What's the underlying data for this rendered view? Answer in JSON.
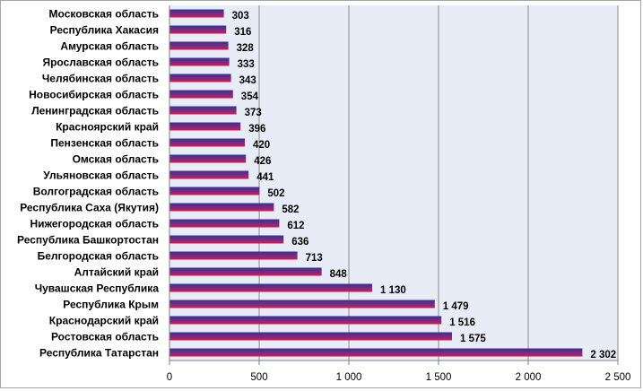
{
  "chart_data": {
    "type": "bar",
    "orientation": "horizontal",
    "title": "",
    "xlabel": "",
    "ylabel": "",
    "xlim": [
      0,
      2500
    ],
    "x_ticks": [
      0,
      500,
      1000,
      1500,
      2000,
      2500
    ],
    "x_tick_labels": [
      "0",
      "500",
      "1 000",
      "1 500",
      "2 000",
      "2 500"
    ],
    "grid": "vertical",
    "legend": "none",
    "colors": {
      "plot_background": "#e8ecf6",
      "gridline": "#8c8c8c",
      "bar_top": "#3a2e9a",
      "bar_bottom": "#c8204c"
    },
    "categories": [
      "Московская область",
      "Республика Хакасия",
      "Амурская область",
      "Ярославская область",
      "Челябинская область",
      "Новосибирская область",
      "Ленинградская область",
      "Красноярский край",
      "Пензенская область",
      "Омская область",
      "Ульяновская область",
      "Волгоградская область",
      "Республика Саха (Якутия)",
      "Нижегородская область",
      "Республика Башкортостан",
      "Белгородская область",
      "Алтайский край",
      "Чувашская Республика",
      "Республика Крым",
      "Краснодарский край",
      "Ростовская область",
      "Республика Татарстан"
    ],
    "values": [
      303,
      316,
      328,
      333,
      343,
      354,
      373,
      396,
      420,
      426,
      441,
      502,
      582,
      612,
      636,
      713,
      848,
      1130,
      1479,
      1516,
      1575,
      2302
    ],
    "value_labels": [
      "303",
      "316",
      "328",
      "333",
      "343",
      "354",
      "373",
      "396",
      "420",
      "426",
      "441",
      "502",
      "582",
      "612",
      "636",
      "713",
      "848",
      "1 130",
      "1 479",
      "1 516",
      "1 575",
      "2 302"
    ]
  }
}
